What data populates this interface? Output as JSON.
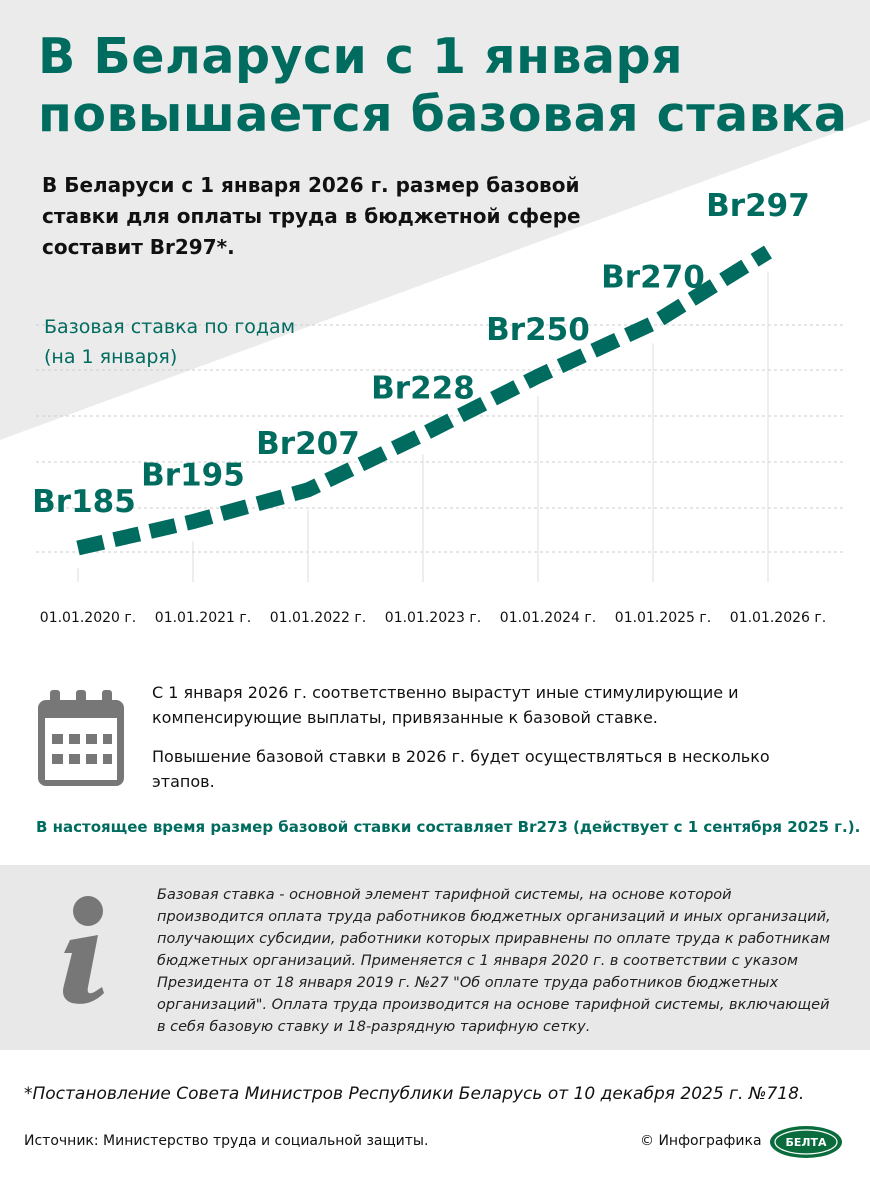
{
  "header": {
    "title": [
      "В Беларуси с 1 января",
      "повышается базовая ставка"
    ],
    "lead": [
      "В Беларуси с 1 января 2026 г. размер базовой",
      "ставки для оплаты труда в бюджетной сфере",
      "составит Br297*."
    ]
  },
  "chart_data": {
    "type": "line",
    "title": [
      "Базовая ставка по годам",
      "(на 1 января)"
    ],
    "categories": [
      "01.01.2020 г.",
      "01.01.2021 г.",
      "01.01.2022 г.",
      "01.01.2023 г.",
      "01.01.2024 г.",
      "01.01.2025 г.",
      "01.01.2026 г."
    ],
    "values": [
      185,
      195,
      207,
      228,
      250,
      270,
      297
    ],
    "value_labels": [
      "Br185",
      "Br195",
      "Br207",
      "Br228",
      "Br250",
      "Br270",
      "Br297"
    ],
    "color": "#006b5f"
  },
  "notes": {
    "paragraphs": [
      "С 1 января 2026 г. соответственно вырастут иные стимулирующие и компенсирующие выплаты, привязанные к базовой ставке.",
      "Повышение базовой ставки в 2026 г. будет осуществляться в несколько этапов."
    ],
    "highlight": "В настоящее время размер базовой ставки составляет Br273 (действует с 1 сентября 2025 г.)."
  },
  "info": {
    "text": "Базовая ставка - основной элемент тарифной системы, на основе которой производится оплата труда работников бюджетных организаций и иных организаций, получающих субсидии, работники которых приравнены по оплате труда к работникам бюджетных организаций. Применяется с 1 января 2020 г. в соответствии с указом Президента от 18 января 2019 г. №27 \"Об оплате труда работников бюджетных организаций\". Оплата труда производится на основе тарифной системы, включающей в себя базовую ставку и 18-разрядную тарифную сетку."
  },
  "footnote": "*Постановление Совета Министров Республики Беларусь от 10 декабря 2025 г. №718.",
  "footer": {
    "source": "Источник: Министерство труда и социальной защиты.",
    "credit": "© Инфографика",
    "logo": "БЕЛТА"
  }
}
